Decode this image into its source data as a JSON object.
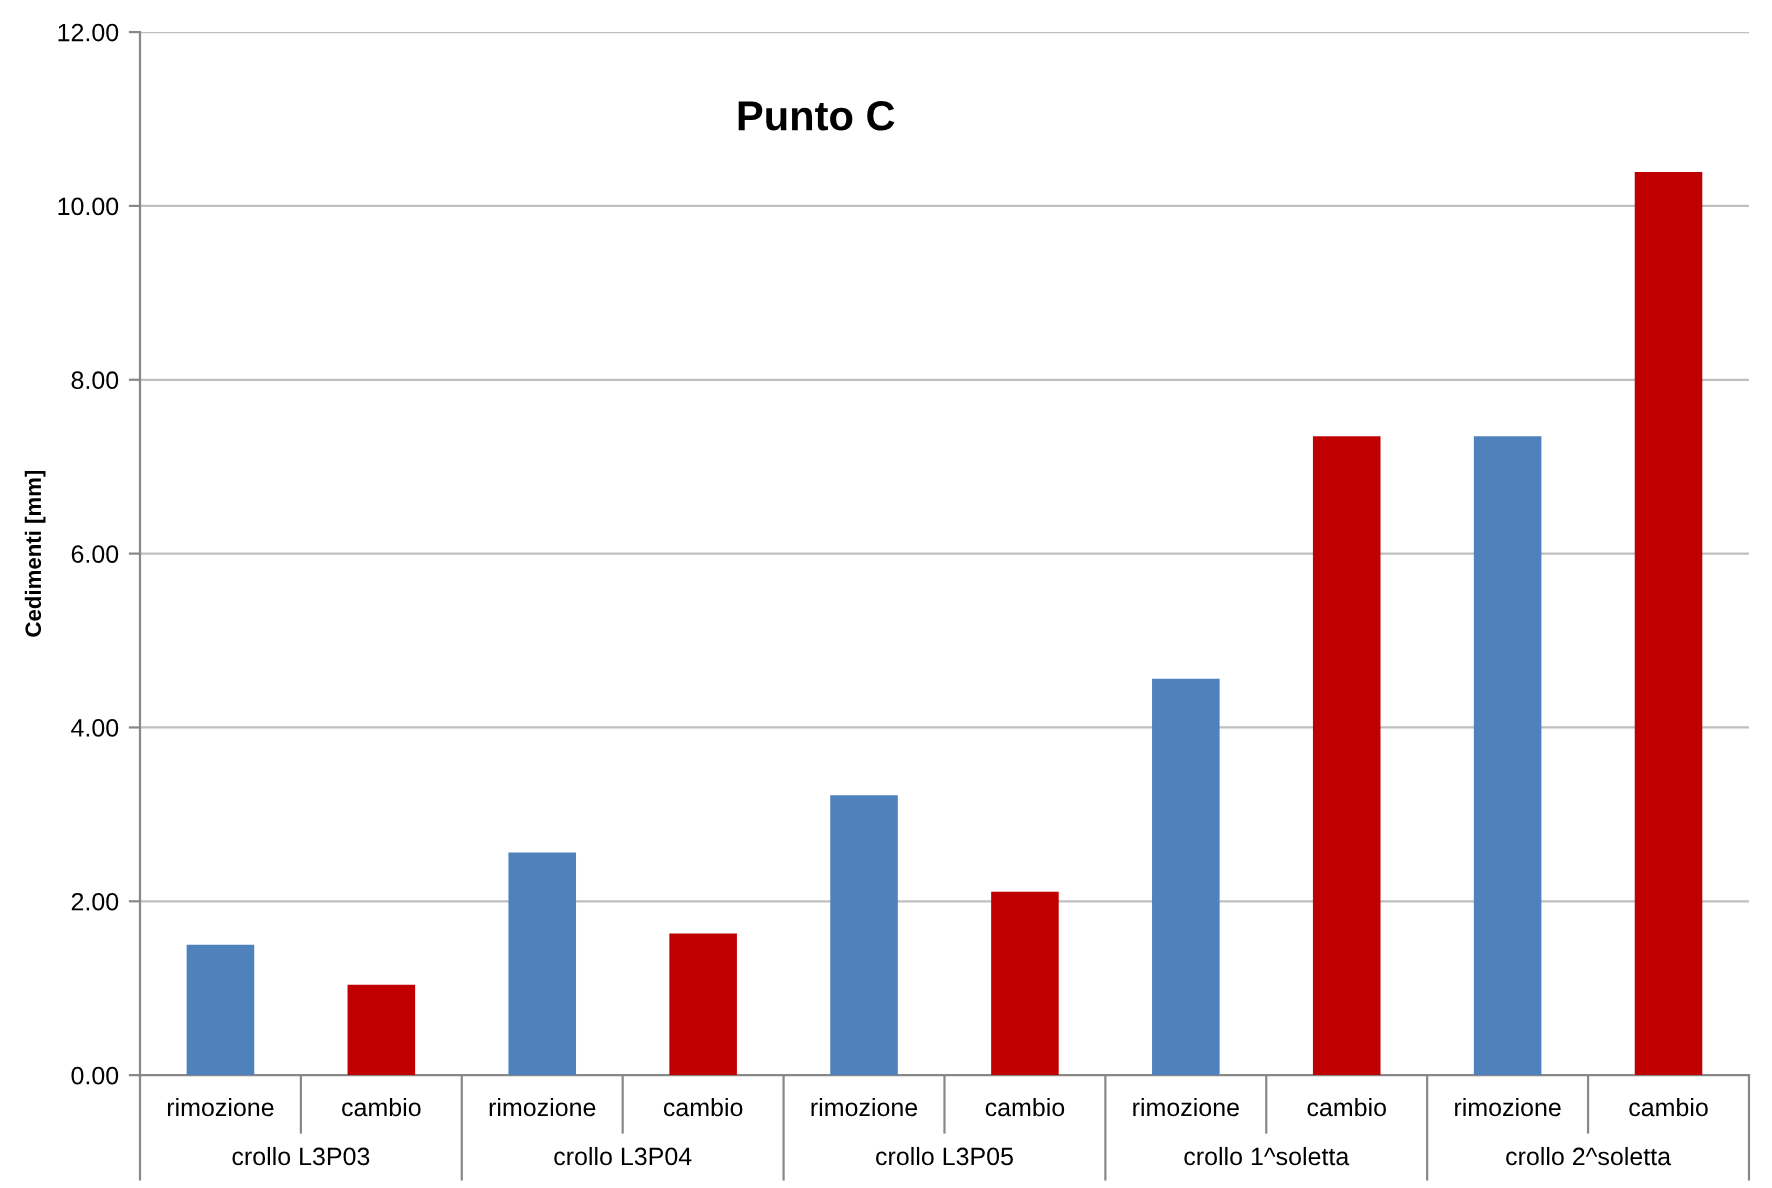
{
  "chart_data": {
    "type": "bar",
    "title": "Punto C",
    "ylabel": "Cedimenti [mm]",
    "categories": [
      "crollo L3P03",
      "crollo L3P04",
      "crollo L3P05",
      "crollo 1^soletta",
      "crollo 2^soletta"
    ],
    "series": [
      {
        "name": "rimozione",
        "color": "#4f81bd",
        "values": [
          1.5,
          2.56,
          3.22,
          4.56,
          7.35
        ]
      },
      {
        "name": "cambio",
        "color": "#c00000",
        "values": [
          1.04,
          1.63,
          2.11,
          7.35,
          10.39
        ]
      }
    ],
    "ylim": [
      0,
      12
    ],
    "yticks": [
      {
        "value": 0,
        "label": "0.00"
      },
      {
        "value": 2,
        "label": "2.00"
      },
      {
        "value": 4,
        "label": "4.00"
      },
      {
        "value": 6,
        "label": "6.00"
      },
      {
        "value": 8,
        "label": "8.00"
      },
      {
        "value": 10,
        "label": "10.00"
      },
      {
        "value": 12,
        "label": "12.00"
      }
    ],
    "grid": "y",
    "legend": false
  }
}
